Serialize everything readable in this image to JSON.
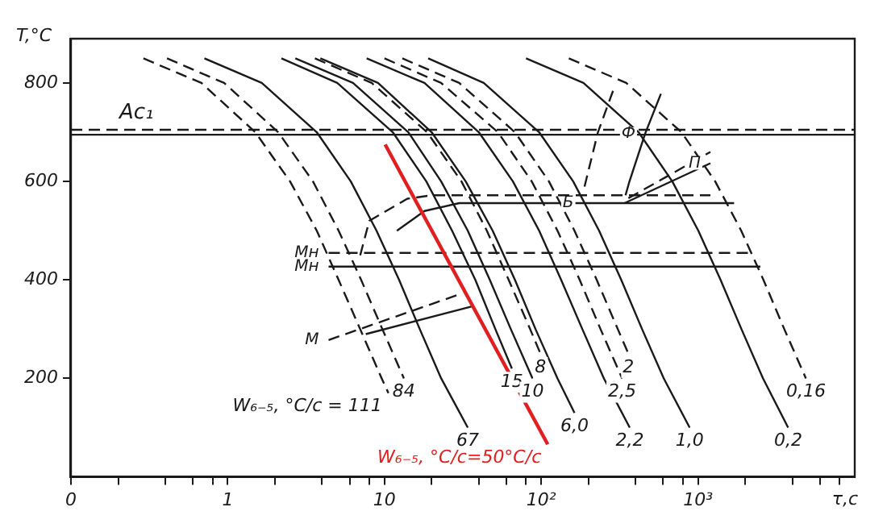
{
  "chart_data": {
    "type": "line",
    "xlabel": "τ,c",
    "ylabel": "T,°C",
    "log": "x",
    "xlim": [
      0.1,
      10000
    ],
    "ylim": [
      0,
      890
    ],
    "xticks": [
      {
        "value": 0.1,
        "label": "0"
      },
      {
        "value": 0.2,
        "label": null
      },
      {
        "value": 0.4,
        "label": null
      },
      {
        "value": 0.6,
        "label": null
      },
      {
        "value": 0.8,
        "label": null
      },
      1,
      {
        "value": 2,
        "label": null
      },
      {
        "value": 4,
        "label": null
      },
      {
        "value": 6,
        "label": null
      },
      {
        "value": 8,
        "label": null
      },
      10,
      {
        "value": 20,
        "label": null
      },
      {
        "value": 40,
        "label": null
      },
      {
        "value": 60,
        "label": null
      },
      {
        "value": 80,
        "label": null
      },
      {
        "value": 100,
        "label": "10²"
      },
      {
        "value": 200,
        "label": null
      },
      {
        "value": 400,
        "label": null
      },
      {
        "value": 600,
        "label": null
      },
      {
        "value": 800,
        "label": null
      },
      {
        "value": 1000,
        "label": "10³"
      },
      {
        "value": 2000,
        "label": null
      },
      {
        "value": 4000,
        "label": null
      },
      {
        "value": 6000,
        "label": null
      },
      {
        "value": 8000,
        "label": null
      }
    ],
    "yticks": [
      200,
      400,
      600,
      800
    ],
    "grid": false,
    "legend": false,
    "marker": "none",
    "ref_lines": [
      {
        "axis": "y",
        "value": 705,
        "label": "Ac₁",
        "line_style": "dashed",
        "color": "#1a1a1a"
      },
      {
        "axis": "y",
        "value": 695,
        "line_style": "solid",
        "color": "#1a1a1a"
      }
    ],
    "annotations": [
      {
        "text": "Ф",
        "x": 460,
        "y": 697
      },
      {
        "text": "П",
        "x": 1200,
        "y": 637
      },
      {
        "text": "Б",
        "x": 186,
        "y": 556
      },
      {
        "text": "M",
        "x": 4.4,
        "y": 278
      },
      {
        "text": "Mн",
        "x": 4.4,
        "y": 455
      },
      {
        "text": "Mн",
        "x": 4.4,
        "y": 427
      }
    ],
    "series": [
      {
        "name": "W₆₋₅, °C/c = 111",
        "color": "#1a1a1a",
        "line_style": "dashed",
        "x": [
          0.29,
          0.68,
          1.5,
          2.5,
          3.7,
          5.1,
          7.0,
          9.6,
          10.6
        ],
        "values": [
          850,
          800,
          700,
          600,
          500,
          400,
          300,
          200,
          170
        ]
      },
      {
        "name": "84",
        "color": "#1a1a1a",
        "line_style": "dashed",
        "x": [
          0.41,
          0.95,
          2.1,
          3.5,
          5.1,
          7.1,
          9.7,
          13.3
        ],
        "values": [
          850,
          800,
          700,
          600,
          500,
          400,
          300,
          200
        ]
      },
      {
        "name": "67",
        "color": "#1a1a1a",
        "line_style": "solid",
        "x": [
          0.71,
          1.65,
          3.7,
          6.1,
          8.9,
          12.4,
          16.8,
          23,
          34
        ],
        "values": [
          850,
          800,
          700,
          600,
          500,
          400,
          300,
          200,
          100
        ]
      },
      {
        "name": "15",
        "color": "#1a1a1a",
        "line_style": "solid",
        "x": [
          2.2,
          5.0,
          11.3,
          18.5,
          27,
          38,
          51,
          65
        ],
        "values": [
          850,
          800,
          700,
          600,
          500,
          400,
          300,
          220
        ]
      },
      {
        "name": "10",
        "color": "#1a1a1a",
        "line_style": "solid",
        "x": [
          2.7,
          6.3,
          14.2,
          23,
          34,
          47,
          64,
          88
        ],
        "values": [
          850,
          800,
          700,
          600,
          500,
          400,
          300,
          200
        ]
      },
      {
        "name": "8",
        "color": "#1a1a1a",
        "line_style": "dashed",
        "x": [
          3.6,
          8.3,
          18.7,
          31,
          45,
          62,
          85,
          99
        ],
        "values": [
          850,
          800,
          700,
          600,
          500,
          400,
          300,
          250
        ]
      },
      {
        "name": "6,0",
        "color": "#1a1a1a",
        "line_style": "solid",
        "x": [
          3.9,
          9.1,
          20,
          33,
          49,
          68,
          92,
          127,
          163
        ],
        "values": [
          850,
          800,
          700,
          600,
          500,
          400,
          300,
          200,
          130
        ]
      },
      {
        "name": "2,5",
        "color": "#1a1a1a",
        "line_style": "dashed",
        "x": [
          10,
          23,
          53,
          87,
          127,
          176,
          239,
          328
        ],
        "values": [
          850,
          800,
          700,
          600,
          500,
          400,
          300,
          200
        ]
      },
      {
        "name": "2",
        "color": "#1a1a1a",
        "line_style": "dashed",
        "x": [
          13,
          30,
          68,
          112,
          163,
          226,
          308,
          360
        ],
        "values": [
          850,
          800,
          700,
          600,
          500,
          400,
          300,
          250
        ]
      },
      {
        "name": "2,2",
        "color": "#1a1a1a",
        "line_style": "solid",
        "x": [
          7.7,
          18,
          40,
          66,
          97,
          134,
          183,
          251,
          367
        ],
        "values": [
          850,
          800,
          700,
          600,
          500,
          400,
          300,
          200,
          100
        ]
      },
      {
        "name": "1,0",
        "color": "#1a1a1a",
        "line_style": "solid",
        "x": [
          19,
          43,
          97,
          160,
          234,
          324,
          440,
          605,
          885
        ],
        "values": [
          850,
          800,
          700,
          600,
          500,
          400,
          300,
          200,
          100
        ]
      },
      {
        "name": "0,2",
        "color": "#1a1a1a",
        "line_style": "solid",
        "x": [
          80,
          186,
          418,
          686,
          1005,
          1394,
          1894,
          2600,
          3760
        ],
        "values": [
          850,
          800,
          700,
          600,
          500,
          400,
          300,
          200,
          100
        ]
      },
      {
        "name": "0,16",
        "color": "#1a1a1a",
        "line_style": "dashed",
        "x": [
          150,
          349,
          785,
          1288,
          1887,
          2616,
          3554,
          4880
        ],
        "values": [
          850,
          800,
          700,
          600,
          500,
          400,
          300,
          200
        ]
      },
      {
        "name": "W₆₋₅, °C/c=50°C/c",
        "color": "#e02020",
        "line_style": "solid",
        "x": [
          10.1,
          110
        ],
        "values": [
          675,
          66
        ]
      },
      {
        "color": "#1a1a1a",
        "line_style": "dashed",
        "x": [
          287,
          230,
          186
        ],
        "values": [
          784,
          700,
          581
        ]
      },
      {
        "color": "#1a1a1a",
        "line_style": "solid",
        "x": [
          580,
          460,
          363,
          345
        ],
        "values": [
          778,
          697,
          597,
          572
        ]
      },
      {
        "color": "#1a1a1a",
        "line_style": "dashed",
        "x": [
          360,
          1200
        ],
        "values": [
          566,
          660
        ]
      },
      {
        "color": "#1a1a1a",
        "line_style": "solid",
        "x": [
          340,
          1200
        ],
        "values": [
          556,
          637
        ]
      },
      {
        "color": "#1a1a1a",
        "line_style": "solid",
        "x": [
          12,
          18,
          30,
          1700
        ],
        "values": [
          500,
          540,
          556,
          556
        ]
      },
      {
        "color": "#1a1a1a",
        "line_style": "dashed",
        "x": [
          7,
          8,
          14,
          20,
          1200
        ],
        "values": [
          450,
          520,
          565,
          572,
          572
        ]
      },
      {
        "color": "#1a1a1a",
        "line_style": "dashed",
        "x": [
          4.4,
          2200
        ],
        "values": [
          455,
          455
        ]
      },
      {
        "color": "#1a1a1a",
        "line_style": "solid",
        "x": [
          4.4,
          2500
        ],
        "values": [
          427,
          427
        ]
      },
      {
        "color": "#1a1a1a",
        "line_style": "dashed",
        "x": [
          4.4,
          29
        ],
        "values": [
          278,
          369
        ]
      },
      {
        "color": "#1a1a1a",
        "line_style": "solid",
        "x": [
          7.6,
          37
        ],
        "values": [
          290,
          347
        ]
      }
    ]
  }
}
